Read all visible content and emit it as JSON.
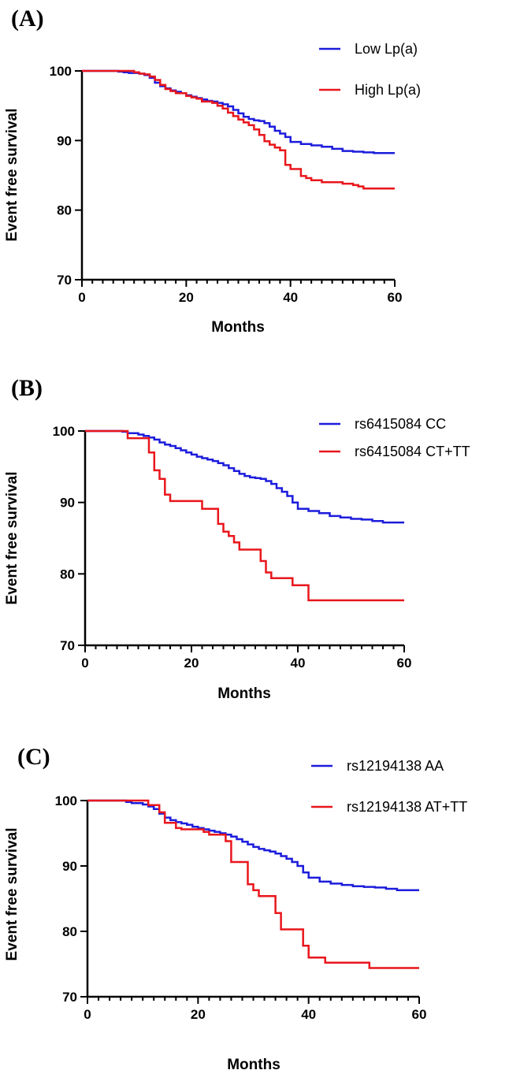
{
  "chart_data": [
    {
      "type": "line",
      "panel_label": "(A)",
      "xlabel": "Months",
      "ylabel": "Event free survival",
      "xlim": [
        0,
        60
      ],
      "ylim": [
        70,
        100
      ],
      "xticks": [
        0,
        20,
        40,
        60
      ],
      "yticks": [
        70,
        80,
        90,
        100
      ],
      "legend_position": "top-right",
      "series": [
        {
          "name": "Low Lp(a)",
          "color": "#1c1cdc",
          "x": [
            0,
            7,
            8,
            9,
            11,
            12,
            13,
            14,
            15,
            16,
            17,
            18,
            19,
            20,
            21,
            22,
            23,
            24,
            25,
            26,
            27,
            28,
            29,
            30,
            31,
            32,
            33,
            34,
            35,
            36,
            37,
            38,
            39,
            40,
            42,
            44,
            46,
            48,
            50,
            52,
            54,
            56,
            60
          ],
          "y": [
            100,
            99.9,
            99.8,
            99.7,
            99.6,
            99.4,
            99.0,
            98.3,
            97.8,
            97.5,
            97.2,
            97.0,
            96.8,
            96.5,
            96.3,
            96.1,
            95.9,
            95.7,
            95.6,
            95.4,
            95.2,
            94.9,
            94.4,
            93.9,
            93.4,
            93.1,
            92.9,
            92.8,
            92.5,
            92.0,
            91.4,
            91.0,
            90.5,
            89.8,
            89.5,
            89.3,
            89.1,
            88.8,
            88.5,
            88.4,
            88.3,
            88.2,
            88.2
          ]
        },
        {
          "name": "High Lp(a)",
          "color": "#e8161c",
          "x": [
            0,
            10,
            11,
            12,
            13,
            14,
            15,
            16,
            17,
            18,
            20,
            21,
            22,
            23,
            25,
            26,
            27,
            28,
            29,
            30,
            31,
            32,
            33,
            34,
            35,
            36,
            37,
            38,
            39,
            40,
            42,
            43,
            44,
            46,
            50,
            52,
            53,
            54,
            60
          ],
          "y": [
            100,
            99.8,
            99.6,
            99.5,
            99.2,
            98.7,
            98.0,
            97.4,
            97.1,
            96.8,
            96.4,
            96.2,
            96.0,
            95.6,
            95.4,
            95.0,
            94.6,
            94.0,
            93.5,
            93.0,
            92.6,
            92.2,
            91.6,
            90.8,
            89.9,
            89.4,
            89.0,
            88.6,
            86.5,
            85.9,
            84.9,
            84.6,
            84.3,
            84.0,
            83.8,
            83.6,
            83.4,
            83.1,
            83.1
          ]
        }
      ]
    },
    {
      "type": "line",
      "panel_label": "(B)",
      "xlabel": "Months",
      "ylabel": "Event free survival",
      "xlim": [
        0,
        60
      ],
      "ylim": [
        70,
        100
      ],
      "xticks": [
        0,
        20,
        40,
        60
      ],
      "yticks": [
        70,
        80,
        90,
        100
      ],
      "legend_position": "top-right",
      "series": [
        {
          "name": "rs6415084 CC",
          "color": "#1c1cdc",
          "x": [
            0,
            7,
            8,
            10,
            11,
            12,
            13,
            14,
            15,
            16,
            17,
            18,
            19,
            20,
            21,
            22,
            23,
            24,
            25,
            26,
            27,
            28,
            29,
            30,
            31,
            32,
            33,
            34,
            35,
            36,
            37,
            38,
            39,
            40,
            42,
            44,
            46,
            48,
            50,
            52,
            54,
            56,
            60
          ],
          "y": [
            100,
            99.9,
            99.7,
            99.5,
            99.3,
            99.1,
            98.8,
            98.4,
            98.1,
            97.9,
            97.6,
            97.3,
            97.0,
            96.7,
            96.4,
            96.2,
            96.0,
            95.8,
            95.5,
            95.2,
            94.8,
            94.4,
            94.0,
            93.7,
            93.5,
            93.4,
            93.3,
            93.0,
            92.6,
            92.0,
            91.5,
            90.9,
            90.0,
            89.1,
            88.8,
            88.5,
            88.1,
            87.9,
            87.7,
            87.6,
            87.4,
            87.2,
            87.2
          ]
        },
        {
          "name": "rs6415084 CT+TT",
          "color": "#e8161c",
          "x": [
            0,
            8,
            12,
            13,
            14,
            15,
            16,
            22,
            25,
            26,
            27,
            28,
            29,
            30,
            33,
            34,
            35,
            39,
            42,
            60
          ],
          "y": [
            100,
            99.0,
            97.0,
            94.5,
            93.3,
            91.1,
            90.2,
            89.1,
            87.0,
            85.9,
            85.3,
            84.4,
            83.4,
            83.4,
            81.8,
            80.2,
            79.4,
            78.4,
            76.3,
            76.3
          ]
        }
      ]
    },
    {
      "type": "line",
      "panel_label": "(C)",
      "xlabel": "Months",
      "ylabel": "Event free survival",
      "xlim": [
        0,
        60
      ],
      "ylim": [
        70,
        100
      ],
      "xticks": [
        0,
        20,
        40,
        60
      ],
      "yticks": [
        70,
        80,
        90,
        100
      ],
      "legend_position": "top-right",
      "series": [
        {
          "name": "rs12194138 AA",
          "color": "#1c1cdc",
          "x": [
            0,
            7,
            8,
            10,
            11,
            12,
            13,
            14,
            15,
            16,
            17,
            18,
            19,
            20,
            21,
            22,
            23,
            24,
            25,
            26,
            27,
            28,
            29,
            30,
            31,
            32,
            33,
            34,
            35,
            36,
            37,
            38,
            39,
            40,
            42,
            44,
            46,
            48,
            50,
            52,
            54,
            56,
            60
          ],
          "y": [
            100,
            99.8,
            99.6,
            99.4,
            99.1,
            98.7,
            98.0,
            97.4,
            97.0,
            96.7,
            96.5,
            96.3,
            96.0,
            95.8,
            95.6,
            95.4,
            95.2,
            95.0,
            94.8,
            94.5,
            94.1,
            93.7,
            93.3,
            92.9,
            92.6,
            92.4,
            92.2,
            91.9,
            91.5,
            91.1,
            90.6,
            90.0,
            89.0,
            88.2,
            87.6,
            87.3,
            87.1,
            86.9,
            86.8,
            86.7,
            86.5,
            86.3,
            86.3
          ]
        },
        {
          "name": "rs12194138 AT+TT",
          "color": "#e8161c",
          "x": [
            0,
            11,
            13,
            14,
            16,
            17,
            21,
            22,
            25,
            26,
            29,
            30,
            31,
            34,
            35,
            39,
            40,
            43,
            51,
            60
          ],
          "y": [
            100,
            99.3,
            98.2,
            96.6,
            95.8,
            95.6,
            95.2,
            94.8,
            93.8,
            90.6,
            87.2,
            86.3,
            85.4,
            82.8,
            80.3,
            77.8,
            76.0,
            75.2,
            74.4,
            74.4
          ]
        }
      ]
    }
  ]
}
